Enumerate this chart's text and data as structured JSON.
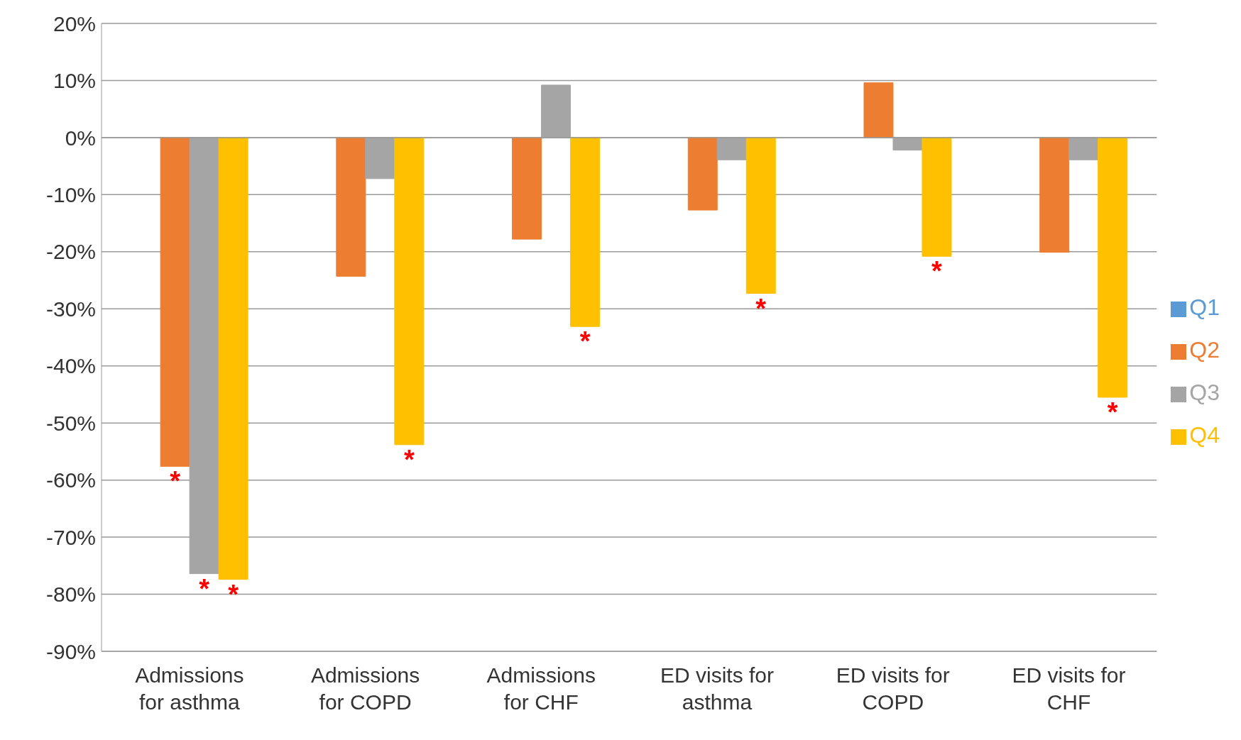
{
  "chart_data": {
    "type": "bar",
    "categories": [
      "Admissions for asthma",
      "Admissions for COPD",
      "Admissions for CHF",
      "ED visits for asthma",
      "ED visits for COPD",
      "ED visits for CHF"
    ],
    "series": [
      {
        "name": "Q1",
        "color": "#5b9bd5",
        "values": [
          0,
          0,
          0,
          0,
          0,
          0
        ]
      },
      {
        "name": "Q2",
        "color": "#ed7d31",
        "values": [
          -57.6,
          -24.3,
          -17.8,
          -12.7,
          9.6,
          -20.1
        ],
        "value_labels": [
          "*",
          null,
          null,
          null,
          null,
          null
        ]
      },
      {
        "name": "Q3",
        "color": "#a5a5a5",
        "values": [
          -76.4,
          -7.2,
          9.2,
          -3.9,
          -2.2,
          -3.9
        ],
        "value_labels": [
          "*",
          null,
          null,
          null,
          null,
          null
        ]
      },
      {
        "name": "Q4",
        "color": "#ffc000",
        "values": [
          -77.4,
          -53.8,
          -33.1,
          -27.3,
          -20.8,
          -45.5
        ],
        "value_labels": [
          "*",
          "*",
          "*",
          "*",
          "*",
          "*"
        ]
      }
    ],
    "ylim": [
      -90,
      20
    ],
    "yticks": [
      {
        "value": -90,
        "label": "-90%"
      },
      {
        "value": -80,
        "label": "-80%"
      },
      {
        "value": -70,
        "label": "-70%"
      },
      {
        "value": -60,
        "label": "-60%"
      },
      {
        "value": -50,
        "label": "-50%"
      },
      {
        "value": -40,
        "label": "-40%"
      },
      {
        "value": -30,
        "label": "-30%"
      },
      {
        "value": -20,
        "label": "-20%"
      },
      {
        "value": -10,
        "label": "-10%"
      },
      {
        "value": 0,
        "label": "0%"
      },
      {
        "value": 10,
        "label": "10%"
      },
      {
        "value": 20,
        "label": "20%"
      }
    ],
    "grid": "y",
    "legend": "right"
  }
}
